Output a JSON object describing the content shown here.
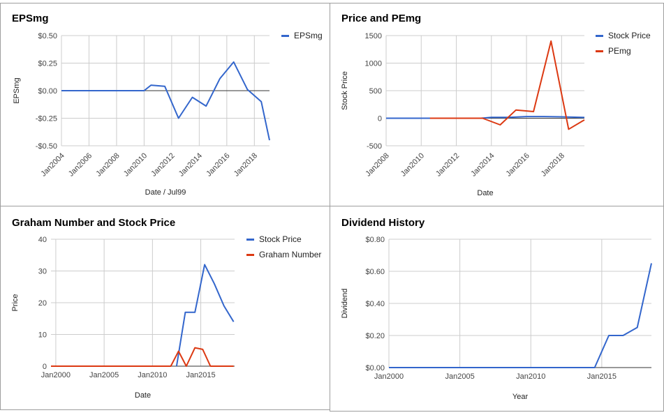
{
  "colors": {
    "blue": "#3366cc",
    "red": "#dc3912",
    "grid": "#cccccc",
    "zero": "#333333"
  },
  "chart_data": [
    {
      "id": "c1",
      "type": "line",
      "title": "EPSmg",
      "xlabel": "Date / Jul99",
      "ylabel": "EPSmg",
      "x_is_date": true,
      "xlim": [
        2004.0,
        2019.1
      ],
      "xticks": [
        2004,
        2006,
        2008,
        2010,
        2012,
        2014,
        2016,
        2018
      ],
      "xtick_labels": [
        "Jan2004",
        "Jan2006",
        "Jan2008",
        "Jan2010",
        "Jan2012",
        "Jan2014",
        "Jan2016",
        "Jan2018"
      ],
      "rotate_xticks": true,
      "ylim": [
        -0.5,
        0.5
      ],
      "yticks": [
        0.5,
        0.25,
        0.0,
        -0.25,
        -0.5
      ],
      "ytick_labels": [
        "$0.50",
        "$0.25",
        "$0.00",
        "-$0.25",
        "-$0.50"
      ],
      "zero_line": 0,
      "legend": "right",
      "series": [
        {
          "name": "EPSmg",
          "color": "#3366cc",
          "x": [
            2004.0,
            2005.0,
            2006.0,
            2007.0,
            2008.0,
            2009.0,
            2010.0,
            2010.5,
            2011.5,
            2012.5,
            2013.5,
            2014.5,
            2015.5,
            2016.5,
            2017.5,
            2018.5,
            2019.1
          ],
          "y": [
            0.0,
            0.0,
            0.0,
            0.0,
            0.0,
            0.0,
            0.0,
            0.05,
            0.04,
            -0.25,
            -0.06,
            -0.14,
            0.11,
            0.26,
            0.01,
            -0.1,
            -0.45
          ]
        }
      ]
    },
    {
      "id": "c2",
      "type": "line",
      "title": "Price and PEmg",
      "xlabel": "Date",
      "ylabel": "Stock Price",
      "x_is_date": true,
      "xlim": [
        2008.0,
        2019.3
      ],
      "xticks": [
        2008,
        2010,
        2012,
        2014,
        2016,
        2018
      ],
      "xtick_labels": [
        "Jan2008",
        "Jan2010",
        "Jan2012",
        "Jan2014",
        "Jan2016",
        "Jan2018"
      ],
      "rotate_xticks": true,
      "ylim": [
        -500,
        1500
      ],
      "yticks": [
        1500,
        1000,
        500,
        0,
        -500
      ],
      "ytick_labels": [
        "1500",
        "1000",
        "500",
        "0",
        "-500"
      ],
      "zero_line": 0,
      "legend": "right",
      "series": [
        {
          "name": "Stock Price",
          "color": "#3366cc",
          "x": [
            2008.0,
            2010.0,
            2012.0,
            2013.4,
            2014.0,
            2015.0,
            2016.0,
            2017.0,
            2018.0,
            2019.3
          ],
          "y": [
            0,
            0,
            0,
            0,
            17,
            17,
            30,
            30,
            25,
            14
          ]
        },
        {
          "name": "PEmg",
          "color": "#dc3912",
          "x": [
            2010.5,
            2011.5,
            2012.5,
            2013.5,
            2014.5,
            2015.4,
            2016.4,
            2017.4,
            2018.4,
            2019.3
          ],
          "y": [
            0,
            0,
            0,
            0,
            -120,
            150,
            120,
            1400,
            -200,
            -30
          ]
        }
      ]
    },
    {
      "id": "c3",
      "type": "line",
      "title": "Graham Number and Stock Price",
      "xlabel": "Date",
      "ylabel": "Price",
      "x_is_date": true,
      "xlim": [
        1999.5,
        2018.5
      ],
      "xticks": [
        2000,
        2005,
        2010,
        2015
      ],
      "xtick_labels": [
        "Jan2000",
        "Jan2005",
        "Jan2010",
        "Jan2015"
      ],
      "rotate_xticks": false,
      "ylim": [
        0,
        40
      ],
      "yticks": [
        40,
        30,
        20,
        10,
        0
      ],
      "ytick_labels": [
        "40",
        "30",
        "20",
        "10",
        "0"
      ],
      "zero_line": 0,
      "legend": "right",
      "series": [
        {
          "name": "Stock Price",
          "color": "#3366cc",
          "x": [
            2012.5,
            2013.4,
            2014.4,
            2015.4,
            2016.4,
            2017.4,
            2018.4
          ],
          "y": [
            0,
            17,
            17,
            32,
            26,
            19,
            14
          ]
        },
        {
          "name": "Graham Number",
          "color": "#dc3912",
          "x": [
            1999.5,
            2005.0,
            2011.9,
            2012.7,
            2013.5,
            2014.4,
            2015.2,
            2016.0,
            2018.4
          ],
          "y": [
            0,
            0,
            0,
            4.7,
            0,
            5.8,
            5.3,
            0,
            0
          ]
        }
      ]
    },
    {
      "id": "c4",
      "type": "line",
      "title": "Dividend History",
      "xlabel": "Year",
      "ylabel": "Dividend",
      "x_is_date": true,
      "xlim": [
        2000,
        2018.5
      ],
      "xticks": [
        2000,
        2005,
        2010,
        2015
      ],
      "xtick_labels": [
        "Jan2000",
        "Jan2005",
        "Jan2010",
        "Jan2015"
      ],
      "rotate_xticks": false,
      "ylim": [
        0,
        0.8
      ],
      "yticks": [
        0.8,
        0.6,
        0.4,
        0.2,
        0.0
      ],
      "ytick_labels": [
        "$0.80",
        "$0.60",
        "$0.40",
        "$0.20",
        "$0.00"
      ],
      "zero_line": 0,
      "legend": "none",
      "series": [
        {
          "name": "",
          "color": "#3366cc",
          "x": [
            2000,
            2014.5,
            2015.5,
            2016.5,
            2017.5,
            2018.5
          ],
          "y": [
            0,
            0,
            0.2,
            0.2,
            0.25,
            0.65
          ]
        }
      ]
    }
  ]
}
